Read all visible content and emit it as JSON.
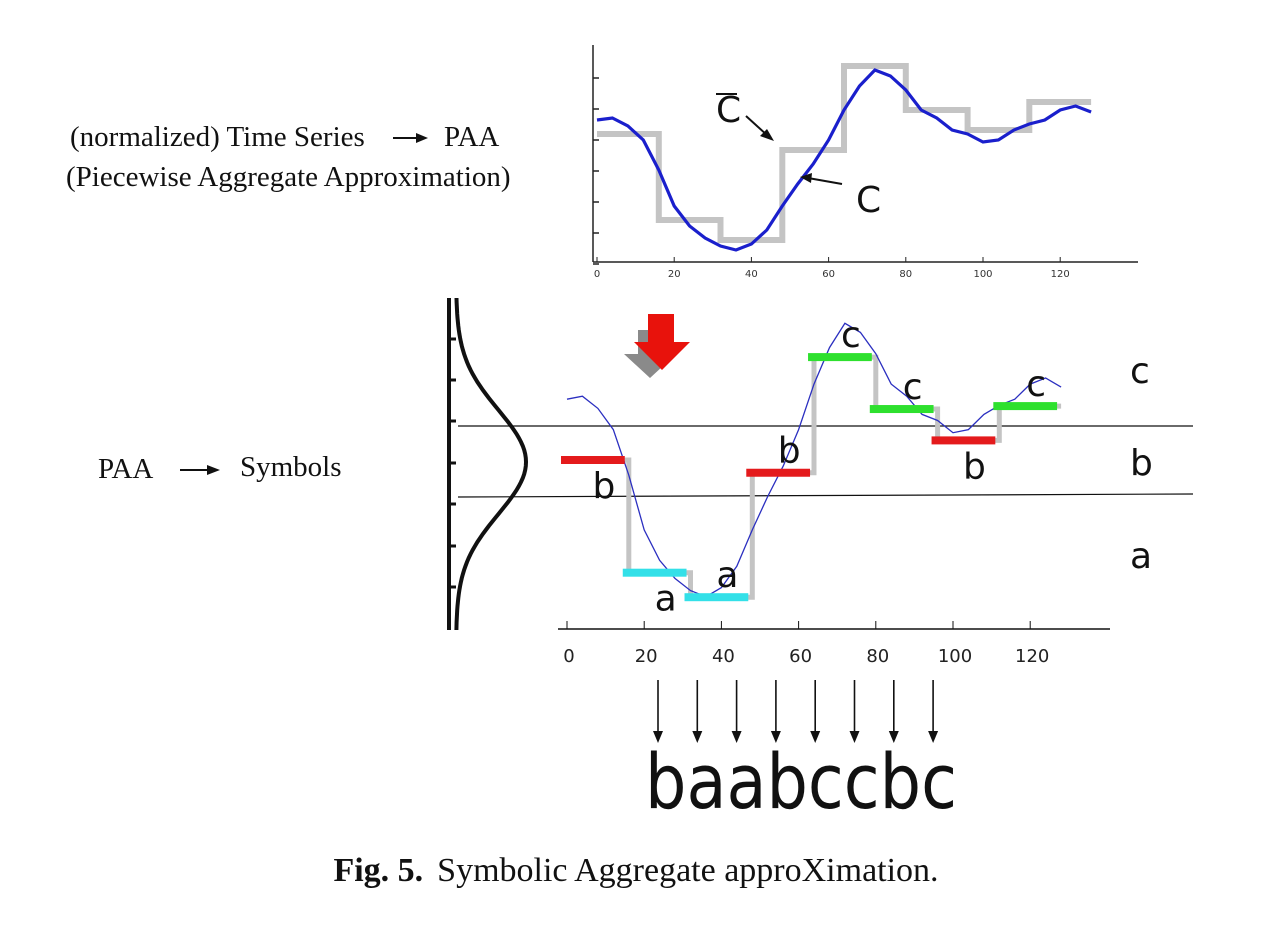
{
  "left_labels": {
    "line1": "(normalized) Time Series",
    "line1_target": "PAA",
    "line2": "(Piecewise Aggregate Approximation)",
    "paa_label": "PAA",
    "symbols_label": "Symbols"
  },
  "top_chart": {
    "x_ticks": [
      "0",
      "20",
      "40",
      "60",
      "80",
      "100",
      "120"
    ],
    "label_cbar": "C",
    "label_c": "C",
    "series_c": [
      [
        0,
        0.65
      ],
      [
        4,
        0.66
      ],
      [
        8,
        0.62
      ],
      [
        12,
        0.55
      ],
      [
        16,
        0.4
      ],
      [
        20,
        0.22
      ],
      [
        24,
        0.12
      ],
      [
        28,
        0.06
      ],
      [
        32,
        0.02
      ],
      [
        36,
        0.0
      ],
      [
        40,
        0.03
      ],
      [
        44,
        0.1
      ],
      [
        48,
        0.22
      ],
      [
        52,
        0.33
      ],
      [
        56,
        0.43
      ],
      [
        60,
        0.55
      ],
      [
        64,
        0.7
      ],
      [
        68,
        0.82
      ],
      [
        72,
        0.9
      ],
      [
        76,
        0.87
      ],
      [
        80,
        0.8
      ],
      [
        84,
        0.7
      ],
      [
        88,
        0.66
      ],
      [
        92,
        0.6
      ],
      [
        96,
        0.58
      ],
      [
        100,
        0.54
      ],
      [
        104,
        0.55
      ],
      [
        108,
        0.6
      ],
      [
        112,
        0.63
      ],
      [
        116,
        0.65
      ],
      [
        120,
        0.7
      ],
      [
        124,
        0.72
      ],
      [
        128,
        0.69
      ]
    ],
    "paa_levels": [
      0.58,
      0.15,
      0.05,
      0.5,
      0.92,
      0.7,
      0.6,
      0.74
    ]
  },
  "bottom_chart": {
    "x_ticks": [
      "0",
      "20",
      "40",
      "60",
      "80",
      "100",
      "120"
    ],
    "band_labels": [
      "c",
      "b",
      "a"
    ],
    "segments": [
      {
        "symbol": "b",
        "level": 0.0,
        "color": "#e41a1c"
      },
      {
        "symbol": "a",
        "level": -1.15,
        "color": "#33e0e8"
      },
      {
        "symbol": "a",
        "level": -1.4,
        "color": "#33e0e8"
      },
      {
        "symbol": "b",
        "level": -0.13,
        "color": "#e41a1c"
      },
      {
        "symbol": "c",
        "level": 1.05,
        "color": "#2ee02e"
      },
      {
        "symbol": "c",
        "level": 0.52,
        "color": "#2ee02e"
      },
      {
        "symbol": "b",
        "level": 0.2,
        "color": "#e41a1c"
      },
      {
        "symbol": "c",
        "level": 0.55,
        "color": "#2ee02e"
      }
    ],
    "word": "baabccbc"
  },
  "caption": {
    "label": "Fig. 5.",
    "text": "Symbolic Aggregate approXimation."
  },
  "colors": {
    "series": "#1a1fcc",
    "paa": "#c4c4c4",
    "red": "#e41a1c",
    "cyan": "#33e0e8",
    "green": "#2ee02e",
    "arrow_red": "#e8120c",
    "arrow_shadow": "#8a8a8a"
  }
}
